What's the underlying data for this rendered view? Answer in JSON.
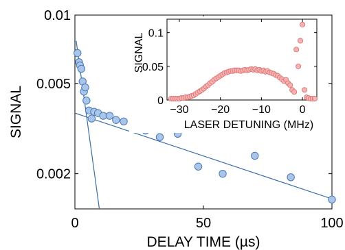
{
  "chart_data": [
    {
      "type": "scatter",
      "title": "",
      "xlabel": "DELAY TIME (µs)",
      "ylabel": "SIGNAL",
      "xlim": [
        0,
        100
      ],
      "ylim": [
        0.0014,
        0.01
      ],
      "yscale": "log",
      "x_ticks": [
        0,
        50,
        100
      ],
      "x_tick_labels": [
        "0",
        "50",
        "100"
      ],
      "y_ticks": [
        0.002,
        0.005,
        0.01
      ],
      "y_tick_labels": [
        "0.002",
        "0.005",
        "0.01"
      ],
      "grid": false,
      "marker_color": "#a9c6ea",
      "marker_edge": "#4a78b5",
      "line_color": "#3a6ea5",
      "points": [
        [
          1,
          0.0068
        ],
        [
          1.6,
          0.0062
        ],
        [
          2,
          0.006
        ],
        [
          2.5,
          0.0058
        ],
        [
          3,
          0.0051
        ],
        [
          3.5,
          0.0046
        ],
        [
          4,
          0.0048
        ],
        [
          4.5,
          0.0042
        ],
        [
          5.5,
          0.0038
        ],
        [
          6.5,
          0.0035
        ],
        [
          7.5,
          0.00375
        ],
        [
          9,
          0.0037
        ],
        [
          11,
          0.0036
        ],
        [
          13.5,
          0.0036
        ],
        [
          16,
          0.00345
        ],
        [
          19,
          0.0034
        ],
        [
          23,
          0.0034
        ],
        [
          27.5,
          0.0031
        ],
        [
          33,
          0.0029
        ],
        [
          40,
          0.003
        ],
        [
          48,
          0.00215
        ],
        [
          57.5,
          0.002
        ],
        [
          70,
          0.0024
        ],
        [
          84,
          0.00193
        ],
        [
          100,
          0.00154
        ]
      ],
      "fit_lines": [
        {
          "x": [
            0,
            100
          ],
          "y": [
            0.0037,
            0.00155
          ]
        },
        {
          "x": [
            0.5,
            9.5
          ],
          "y": [
            0.0077,
            0.0014
          ]
        }
      ]
    },
    {
      "type": "scatter",
      "title": "",
      "xlabel": "LASER DETUNING (MHz)",
      "ylabel": "SIGNAL",
      "xlim": [
        -33,
        3.5
      ],
      "ylim": [
        0,
        0.12
      ],
      "x_ticks": [
        -30,
        -20,
        -10,
        0
      ],
      "x_tick_labels": [
        "−30",
        "−20",
        "−10",
        "0"
      ],
      "y_ticks": [
        0,
        0.05,
        0.1
      ],
      "y_tick_labels": [
        "0",
        "0.05",
        "0.1"
      ],
      "grid": false,
      "marker_color": "#f4b3b3",
      "marker_edge": "#e07575",
      "x": [
        -32,
        -31.5,
        -31,
        -30.5,
        -30,
        -29.5,
        -29,
        -28.5,
        -28,
        -27.5,
        -27,
        -26.5,
        -26,
        -25.5,
        -25,
        -24.5,
        -24,
        -23.5,
        -23,
        -22.5,
        -22,
        -21.5,
        -21,
        -20.5,
        -20,
        -19.5,
        -19,
        -18.5,
        -18,
        -17.5,
        -17,
        -16.5,
        -16,
        -15.5,
        -15,
        -14.5,
        -14,
        -13.5,
        -13,
        -12.5,
        -12,
        -11.5,
        -11,
        -10.5,
        -10,
        -9.5,
        -9,
        -8.5,
        -8,
        -7.5,
        -7,
        -6.5,
        -6,
        -5.5,
        -5,
        -4.5,
        -4,
        -3.5,
        -3,
        -2.5,
        -2,
        -1.5,
        -1,
        -0.5,
        0,
        0.5,
        1,
        1.5,
        2,
        2.5,
        3
      ],
      "y": [
        0.002,
        0.002,
        0.002,
        0.002,
        0.002,
        0.003,
        0.003,
        0.004,
        0.004,
        0.005,
        0.006,
        0.007,
        0.009,
        0.011,
        0.013,
        0.015,
        0.017,
        0.02,
        0.022,
        0.025,
        0.027,
        0.03,
        0.032,
        0.034,
        0.036,
        0.038,
        0.04,
        0.041,
        0.042,
        0.043,
        0.043,
        0.044,
        0.044,
        0.044,
        0.043,
        0.044,
        0.045,
        0.044,
        0.045,
        0.046,
        0.045,
        0.046,
        0.044,
        0.045,
        0.043,
        0.044,
        0.042,
        0.043,
        0.041,
        0.04,
        0.039,
        0.037,
        0.036,
        0.033,
        0.031,
        0.028,
        0.03,
        0.025,
        0.022,
        0.015,
        0.012,
        0.075,
        0.05,
        0.088,
        0.112,
        0.015,
        0.004,
        0.003,
        0.002,
        0.002,
        0.002
      ]
    }
  ]
}
